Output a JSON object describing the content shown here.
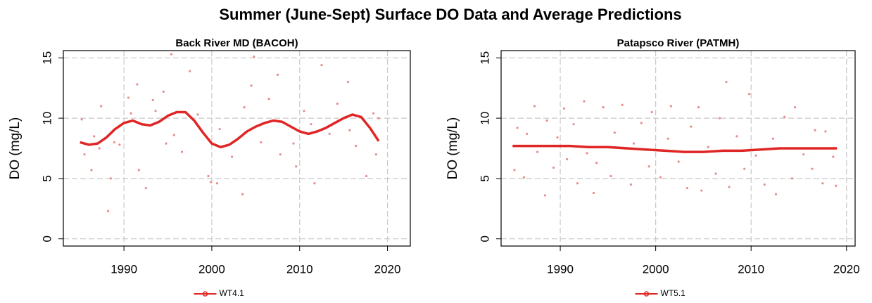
{
  "title": "Summer (June-Sept) Surface DO Data and Average Predictions",
  "chart_data": [
    {
      "type": "scatter",
      "title": "Back River MD (BACOH)",
      "ylabel": "DO (mg/L)",
      "xlim": [
        1983.1,
        2022.6
      ],
      "ylim": [
        -0.6,
        15.6
      ],
      "xticks": [
        1990,
        2000,
        2010,
        2020
      ],
      "yticks": [
        0,
        5,
        10,
        15
      ],
      "grid": true,
      "points": {
        "color": "#e98c8c",
        "x": [
          1985.2,
          1985.5,
          1986.3,
          1986.6,
          1987.2,
          1987.4,
          1988.2,
          1988.5,
          1988.9,
          1989.5,
          1990.5,
          1990.8,
          1991.5,
          1991.7,
          1992.5,
          1993.3,
          1993.6,
          1994.5,
          1994.8,
          1995.4,
          1995.7,
          1996.6,
          1997.5,
          1998.4,
          1999.6,
          1999.9,
          2000.6,
          2000.9,
          2002.3,
          2003.5,
          2003.7,
          2004.5,
          2004.8,
          2005.6,
          2006.5,
          2007.5,
          2007.8,
          2009.3,
          2009.6,
          2010.5,
          2011.3,
          2011.7,
          2012.5,
          2013.4,
          2014.3,
          2015.5,
          2015.7,
          2016.4,
          2017.6,
          2018.4,
          2018.7,
          2019.0
        ],
        "values": [
          9.9,
          7.0,
          5.7,
          8.5,
          7.5,
          11.0,
          2.3,
          5.0,
          8.0,
          7.8,
          11.7,
          10.4,
          12.8,
          5.7,
          4.2,
          11.5,
          10.6,
          12.2,
          7.9,
          15.3,
          8.6,
          7.2,
          13.9,
          10.3,
          5.2,
          4.7,
          4.6,
          9.1,
          6.8,
          3.7,
          10.9,
          12.7,
          15.1,
          8.0,
          11.6,
          13.6,
          7.0,
          7.9,
          6.0,
          10.6,
          9.5,
          4.6,
          14.4,
          8.7,
          11.2,
          13.0,
          9.0,
          7.7,
          5.2,
          10.4,
          7.0,
          10.0
        ]
      },
      "series": [
        {
          "name": "WT4.1",
          "color": "#e02525",
          "x": [
            1985,
            1986,
            1987,
            1988,
            1989,
            1990,
            1991,
            1992,
            1993,
            1994,
            1995,
            1996,
            1997,
            1998,
            1999,
            2000,
            2001,
            2002,
            2003,
            2004,
            2005,
            2006,
            2007,
            2008,
            2009,
            2010,
            2011,
            2012,
            2013,
            2014,
            2015,
            2016,
            2017,
            2018,
            2019
          ],
          "values": [
            8.0,
            7.8,
            7.9,
            8.4,
            9.1,
            9.6,
            9.8,
            9.5,
            9.4,
            9.7,
            10.2,
            10.5,
            10.5,
            9.8,
            8.8,
            7.9,
            7.6,
            7.8,
            8.3,
            8.9,
            9.3,
            9.6,
            9.8,
            9.7,
            9.3,
            8.9,
            8.7,
            8.9,
            9.2,
            9.6,
            10.0,
            10.3,
            10.1,
            9.2,
            8.1
          ]
        }
      ]
    },
    {
      "type": "scatter",
      "title": "Patapsco River (PATMH)",
      "ylabel": "DO (mg/L)",
      "xlim": [
        1983.8,
        2020.9
      ],
      "ylim": [
        -0.6,
        15.6
      ],
      "xticks": [
        1990,
        2000,
        2010,
        2020
      ],
      "yticks": [
        0,
        5,
        10,
        15
      ],
      "grid": true,
      "points": {
        "color": "#e98c8c",
        "x": [
          1985.2,
          1985.5,
          1986.2,
          1986.5,
          1987.3,
          1987.6,
          1988.4,
          1988.6,
          1989.3,
          1989.7,
          1990.4,
          1990.7,
          1991.4,
          1991.8,
          1992.5,
          1992.8,
          1993.5,
          1993.8,
          1994.5,
          1995.3,
          1995.7,
          1996.5,
          1997.4,
          1997.7,
          1998.5,
          1999.3,
          1999.6,
          2000.5,
          2001.3,
          2001.6,
          2002.4,
          2003.3,
          2003.7,
          2004.5,
          2004.8,
          2005.5,
          2006.3,
          2006.7,
          2007.4,
          2007.7,
          2008.5,
          2009.3,
          2009.8,
          2010.5,
          2011.4,
          2012.3,
          2012.6,
          2013.5,
          2014.3,
          2014.6,
          2015.5,
          2016.4,
          2016.7,
          2017.5,
          2017.8,
          2018.6,
          2018.9
        ],
        "values": [
          5.7,
          9.2,
          5.1,
          8.7,
          11.0,
          7.2,
          3.6,
          9.8,
          5.9,
          8.4,
          10.8,
          6.6,
          9.5,
          4.6,
          11.4,
          7.1,
          3.8,
          6.3,
          10.9,
          5.2,
          8.8,
          11.1,
          4.5,
          7.9,
          9.6,
          6.0,
          10.5,
          5.1,
          8.3,
          11.0,
          6.4,
          4.2,
          9.3,
          10.9,
          4.0,
          7.6,
          5.4,
          10.0,
          13.0,
          4.3,
          8.5,
          5.8,
          12.0,
          6.9,
          4.5,
          8.3,
          3.7,
          10.1,
          5.0,
          10.9,
          7.0,
          5.8,
          9.0,
          4.6,
          8.9,
          6.8,
          4.4
        ]
      },
      "series": [
        {
          "name": "WT5.1",
          "color": "#e02525",
          "x": [
            1985,
            1987,
            1989,
            1991,
            1993,
            1995,
            1997,
            1999,
            2001,
            2003,
            2005,
            2007,
            2009,
            2011,
            2013,
            2015,
            2017,
            2019
          ],
          "values": [
            7.7,
            7.7,
            7.7,
            7.7,
            7.6,
            7.6,
            7.5,
            7.4,
            7.3,
            7.2,
            7.2,
            7.3,
            7.3,
            7.4,
            7.5,
            7.5,
            7.5,
            7.5
          ]
        }
      ]
    }
  ]
}
